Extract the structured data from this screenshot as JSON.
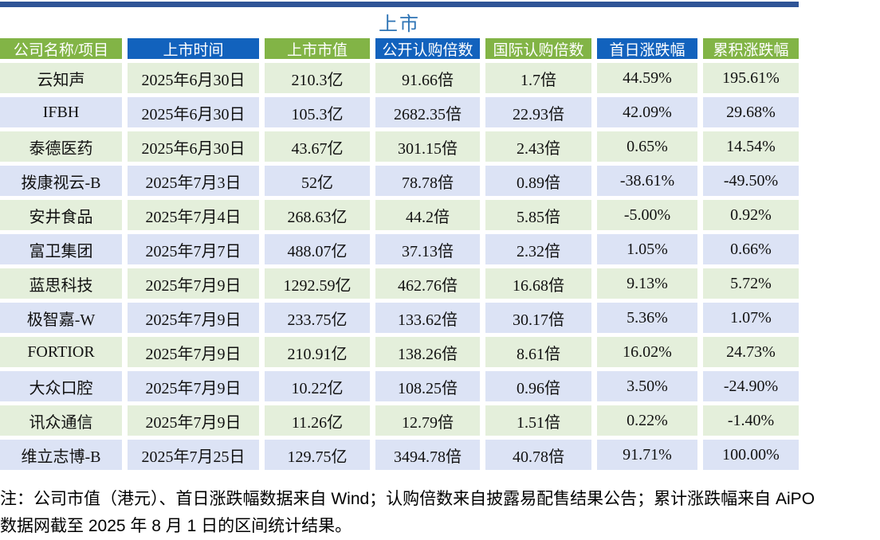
{
  "title": "上市",
  "colors": {
    "top_bar": "#2F5496",
    "title": "#2E74B5",
    "header_green": "#82B446",
    "header_blue": "#1262BD",
    "row_green": "#E4EFDB",
    "row_blue": "#DCE3F5"
  },
  "table": {
    "headers": [
      "公司名称/项目",
      "上市时间",
      "上市市值",
      "公开认购倍数",
      "国际认购倍数",
      "首日涨跌幅",
      "累积涨跌幅"
    ],
    "rows": [
      [
        "云知声",
        "2025年6月30日",
        "210.3亿",
        "91.66倍",
        "1.7倍",
        "44.59%",
        "195.61%"
      ],
      [
        "IFBH",
        "2025年6月30日",
        "105.3亿",
        "2682.35倍",
        "22.93倍",
        "42.09%",
        "29.68%"
      ],
      [
        "泰德医药",
        "2025年6月30日",
        "43.67亿",
        "301.15倍",
        "2.43倍",
        "0.65%",
        "14.54%"
      ],
      [
        "拨康视云-B",
        "2025年7月3日",
        "52亿",
        "78.78倍",
        "0.89倍",
        "-38.61%",
        "-49.50%"
      ],
      [
        "安井食品",
        "2025年7月4日",
        "268.63亿",
        "44.2倍",
        "5.85倍",
        "-5.00%",
        "0.92%"
      ],
      [
        "富卫集团",
        "2025年7月7日",
        "488.07亿",
        "37.13倍",
        "2.32倍",
        "1.05%",
        "0.66%"
      ],
      [
        "蓝思科技",
        "2025年7月9日",
        "1292.59亿",
        "462.76倍",
        "16.68倍",
        "9.13%",
        "5.72%"
      ],
      [
        "极智嘉-W",
        "2025年7月9日",
        "233.75亿",
        "133.62倍",
        "30.17倍",
        "5.36%",
        "1.07%"
      ],
      [
        "FORTIOR",
        "2025年7月9日",
        "210.91亿",
        "138.26倍",
        "8.61倍",
        "16.02%",
        "24.73%"
      ],
      [
        "大众口腔",
        "2025年7月9日",
        "10.22亿",
        "108.25倍",
        "0.96倍",
        "3.50%",
        "-24.90%"
      ],
      [
        "讯众通信",
        "2025年7月9日",
        "11.26亿",
        "12.79倍",
        "1.51倍",
        "0.22%",
        "-1.40%"
      ],
      [
        "维立志博-B",
        "2025年7月25日",
        "129.75亿",
        "3494.78倍",
        "40.78倍",
        "91.71%",
        "100.00%"
      ]
    ]
  },
  "note": {
    "line1": "注：公司市值（港元）、首日涨跌幅数据来自 Wind；认购倍数来自披露易配售结果公告；累计涨跌幅来自 AiPO",
    "line2": "数据网截至 2025 年 8 月 1 日的区间统计结果。"
  }
}
